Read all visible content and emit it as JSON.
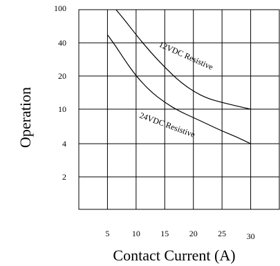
{
  "chart_data": {
    "type": "line",
    "title": "",
    "xlabel": "Contact Current (A)",
    "ylabel": "Operation",
    "x_ticks": [
      5,
      10,
      15,
      20,
      25,
      30
    ],
    "y_ticks": [
      {
        "label": "100"
      },
      {
        "label": "40"
      },
      {
        "label": "20"
      },
      {
        "label": "10"
      },
      {
        "label": "4"
      },
      {
        "label": "2"
      }
    ],
    "xlim": [
      0,
      35
    ],
    "grid": true,
    "series": [
      {
        "name": "12VDC Resistive",
        "x": [
          6.5,
          8,
          10,
          12.5,
          15,
          17.5,
          20,
          22.5,
          25,
          27.5,
          30
        ],
        "y": [
          100,
          75,
          50,
          33,
          24,
          18,
          14.5,
          12.5,
          11.5,
          10.7,
          10
        ]
      },
      {
        "name": "24VDC Resistive",
        "x": [
          5,
          6.5,
          8,
          10,
          12.5,
          15,
          17.5,
          20,
          22.5,
          25,
          27.5,
          30
        ],
        "y": [
          50,
          37,
          28,
          20,
          14.5,
          11.5,
          9.5,
          8,
          6.7,
          5.6,
          4.8,
          4
        ]
      }
    ]
  }
}
